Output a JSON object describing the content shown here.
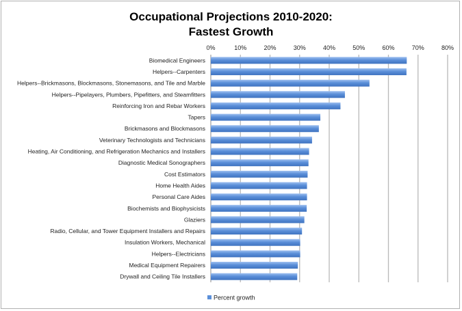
{
  "chart_data": {
    "type": "bar",
    "orientation": "horizontal",
    "title_lines": [
      "Occupational Projections 2010-2020:",
      "Fastest Growth"
    ],
    "xlabel": "",
    "ylabel": "",
    "xlim": [
      0,
      80
    ],
    "x_unit": "%",
    "x_ticks": [
      "0%",
      "10%",
      "20%",
      "30%",
      "40%",
      "50%",
      "60%",
      "70%",
      "80%"
    ],
    "x_axis_position": "top",
    "grid": true,
    "legend_position": "bottom",
    "bar_color": "#5b8fd9",
    "categories": [
      "Biomedical Engineers",
      "Helpers--Carpenters",
      "Helpers--Brickmasons, Blockmasons, Stonemasons, and Tile and Marble",
      "Helpers--Pipelayers, Plumbers, Pipefitters, and Steamfitters",
      "Reinforcing Iron and Rebar Workers",
      "Tapers",
      "Brickmasons and Blockmasons",
      "Veterinary Technologists and Technicians",
      "Heating, Air Conditioning, and Refrigeration Mechanics and Installers",
      "Diagnostic Medical Sonographers",
      "Cost Estimators",
      "Home Health Aides",
      "Personal Care Aides",
      "Biochemists and Biophysicists",
      "Glaziers",
      "Radio, Cellular, and Tower Equipment Installers and Repairs",
      "Insulation Workers, Mechanical",
      "Helpers--Electricians",
      "Medical Equipment Repairers",
      "Drywall and Ceiling Tile Installers"
    ],
    "series": [
      {
        "name": "Percent growth",
        "values": [
          66.2,
          66.1,
          53.6,
          45.3,
          43.8,
          37.0,
          36.5,
          34.2,
          33.2,
          33.0,
          32.7,
          32.5,
          32.5,
          32.4,
          31.6,
          30.8,
          30.2,
          30.2,
          29.4,
          29.2
        ]
      }
    ]
  }
}
